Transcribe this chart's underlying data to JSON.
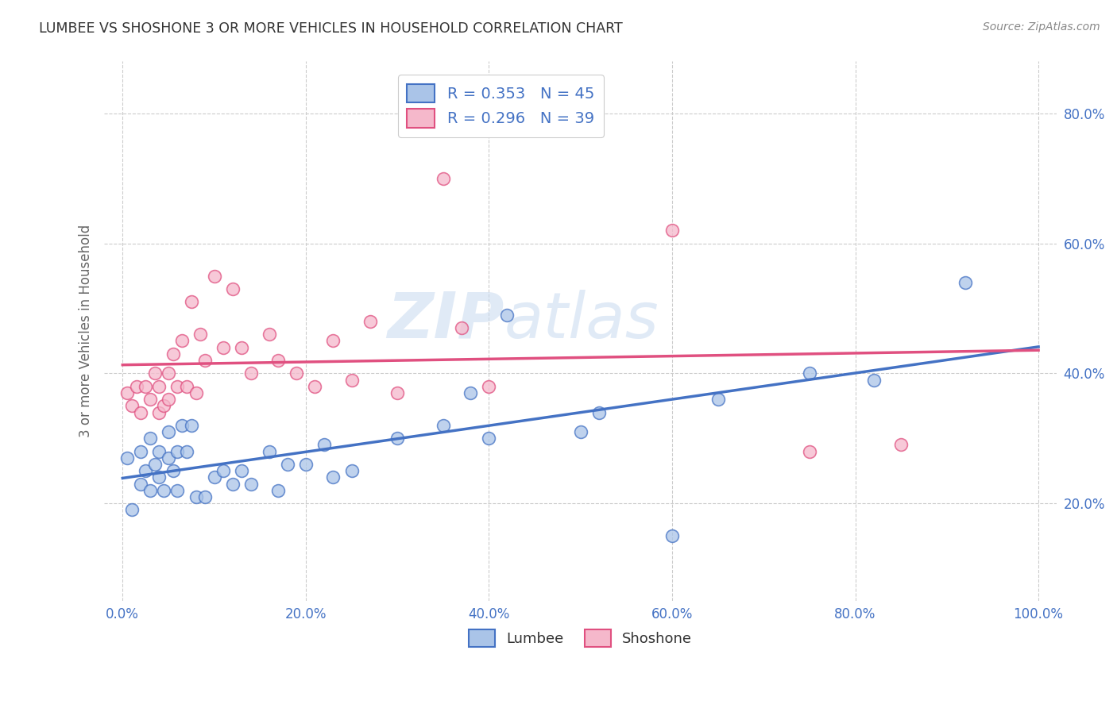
{
  "title": "LUMBEE VS SHOSHONE 3 OR MORE VEHICLES IN HOUSEHOLD CORRELATION CHART",
  "source": "Source: ZipAtlas.com",
  "ylabel": "3 or more Vehicles in Household",
  "xlabel": "",
  "xlim": [
    -0.02,
    1.02
  ],
  "ylim": [
    0.05,
    0.88
  ],
  "xticks": [
    0.0,
    0.2,
    0.4,
    0.6,
    0.8,
    1.0
  ],
  "yticks": [
    0.2,
    0.4,
    0.6,
    0.8
  ],
  "xticklabels": [
    "0.0%",
    "20.0%",
    "40.0%",
    "60.0%",
    "80.0%",
    "100.0%"
  ],
  "yticklabels": [
    "20.0%",
    "40.0%",
    "60.0%",
    "80.0%"
  ],
  "lumbee_color": "#aac4e8",
  "shoshone_color": "#f5b8cb",
  "lumbee_line_color": "#4472c4",
  "shoshone_line_color": "#e05080",
  "lumbee_R": 0.353,
  "lumbee_N": 45,
  "shoshone_R": 0.296,
  "shoshone_N": 39,
  "watermark_zip": "ZIP",
  "watermark_atlas": "atlas",
  "background_color": "#ffffff",
  "grid_color": "#cccccc",
  "lumbee_x": [
    0.005,
    0.01,
    0.02,
    0.02,
    0.025,
    0.03,
    0.03,
    0.035,
    0.04,
    0.04,
    0.045,
    0.05,
    0.05,
    0.055,
    0.06,
    0.06,
    0.065,
    0.07,
    0.075,
    0.08,
    0.09,
    0.1,
    0.11,
    0.12,
    0.13,
    0.14,
    0.16,
    0.17,
    0.18,
    0.2,
    0.22,
    0.23,
    0.25,
    0.3,
    0.35,
    0.38,
    0.4,
    0.42,
    0.5,
    0.52,
    0.6,
    0.65,
    0.75,
    0.82,
    0.92
  ],
  "lumbee_y": [
    0.27,
    0.19,
    0.23,
    0.28,
    0.25,
    0.22,
    0.3,
    0.26,
    0.24,
    0.28,
    0.22,
    0.27,
    0.31,
    0.25,
    0.22,
    0.28,
    0.32,
    0.28,
    0.32,
    0.21,
    0.21,
    0.24,
    0.25,
    0.23,
    0.25,
    0.23,
    0.28,
    0.22,
    0.26,
    0.26,
    0.29,
    0.24,
    0.25,
    0.3,
    0.32,
    0.37,
    0.3,
    0.49,
    0.31,
    0.34,
    0.15,
    0.36,
    0.4,
    0.39,
    0.54
  ],
  "shoshone_x": [
    0.005,
    0.01,
    0.015,
    0.02,
    0.025,
    0.03,
    0.035,
    0.04,
    0.04,
    0.045,
    0.05,
    0.05,
    0.055,
    0.06,
    0.065,
    0.07,
    0.075,
    0.08,
    0.085,
    0.09,
    0.1,
    0.11,
    0.12,
    0.13,
    0.14,
    0.16,
    0.17,
    0.19,
    0.21,
    0.23,
    0.25,
    0.27,
    0.3,
    0.35,
    0.37,
    0.4,
    0.6,
    0.75,
    0.85
  ],
  "shoshone_y": [
    0.37,
    0.35,
    0.38,
    0.34,
    0.38,
    0.36,
    0.4,
    0.34,
    0.38,
    0.35,
    0.36,
    0.4,
    0.43,
    0.38,
    0.45,
    0.38,
    0.51,
    0.37,
    0.46,
    0.42,
    0.55,
    0.44,
    0.53,
    0.44,
    0.4,
    0.46,
    0.42,
    0.4,
    0.38,
    0.45,
    0.39,
    0.48,
    0.37,
    0.7,
    0.47,
    0.38,
    0.62,
    0.28,
    0.29
  ],
  "tick_color": "#4472c4",
  "legend_text_color": "#4472c4",
  "axis_label_color": "#666666"
}
